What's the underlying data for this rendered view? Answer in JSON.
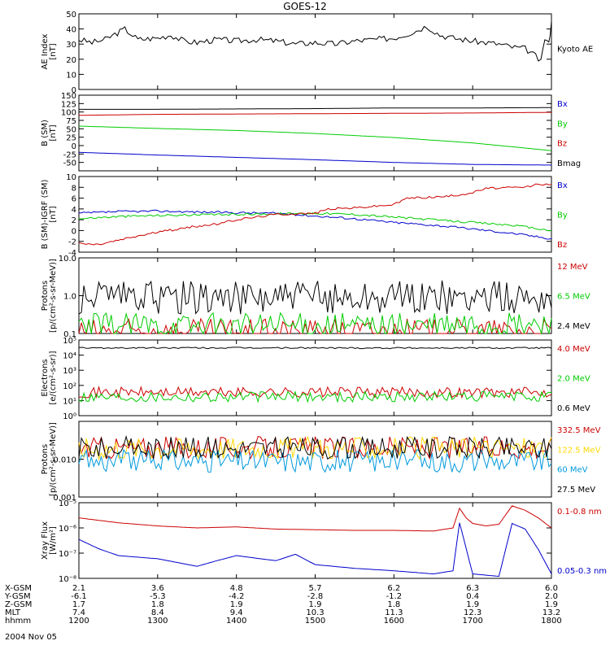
{
  "title": "GOES-12",
  "date_label": "2004 Nov 05",
  "ephemeris": {
    "rows": [
      {
        "label": "X-GSM",
        "values": [
          "2.1",
          "3.6",
          "4.8",
          "5.7",
          "6.2",
          "6.3",
          "6.0"
        ]
      },
      {
        "label": "Y-GSM",
        "values": [
          "-6.1",
          "-5.3",
          "-4.2",
          "-2.8",
          "-1.2",
          "0.4",
          "2.0"
        ]
      },
      {
        "label": "Z-GSM",
        "values": [
          "1.7",
          "1.8",
          "1.9",
          "1.9",
          "1.8",
          "1.9",
          "1.9"
        ]
      },
      {
        "label": "MLT",
        "values": [
          "7.4",
          "8.4",
          "9.4",
          "10.3",
          "11.3",
          "12.3",
          "13.2"
        ]
      },
      {
        "label": "hhmm",
        "values": [
          "1200",
          "1300",
          "1400",
          "1500",
          "1600",
          "1700",
          "1800"
        ]
      }
    ]
  },
  "colors": {
    "black": "#000000",
    "red": "#cc0000",
    "green": "#00cc00",
    "blue": "#0000cc",
    "yellow": "#ffd700",
    "cyan": "#0099dd"
  },
  "chart_data": [
    {
      "id": "ae",
      "type": "line",
      "ylabel": "AE Index\n[nT]",
      "ylim": [
        0,
        50
      ],
      "yticks": [
        "0",
        "10",
        "20",
        "30",
        "40",
        "50"
      ],
      "x": [
        1200,
        1800
      ],
      "series": [
        {
          "name": "Kyoto AE",
          "color": "#000000",
          "values": [
            [
              1200,
              33
            ],
            [
              1210,
              31
            ],
            [
              1220,
              33
            ],
            [
              1235,
              40
            ],
            [
              1245,
              33
            ],
            [
              1300,
              34
            ],
            [
              1310,
              36
            ],
            [
              1320,
              32
            ],
            [
              1330,
              31
            ],
            [
              1345,
              33
            ],
            [
              1400,
              32
            ],
            [
              1415,
              33
            ],
            [
              1430,
              32
            ],
            [
              1445,
              30
            ],
            [
              1500,
              31
            ],
            [
              1515,
              30
            ],
            [
              1530,
              32
            ],
            [
              1545,
              33
            ],
            [
              1600,
              34
            ],
            [
              1615,
              38
            ],
            [
              1625,
              42
            ],
            [
              1635,
              36
            ],
            [
              1645,
              34
            ],
            [
              1700,
              32
            ],
            [
              1710,
              31
            ],
            [
              1720,
              30
            ],
            [
              1730,
              28
            ],
            [
              1740,
              27
            ],
            [
              1748,
              22
            ],
            [
              1752,
              18
            ],
            [
              1755,
              34
            ],
            [
              1758,
              30
            ],
            [
              1800,
              45
            ]
          ]
        }
      ]
    },
    {
      "id": "bsm",
      "type": "line",
      "ylabel": "B (SM)\n[nT]",
      "ylim": [
        -75,
        150
      ],
      "yticks": [
        "-50",
        "-25",
        "0",
        "25",
        "50",
        "75",
        "100",
        "125",
        "150"
      ],
      "ytick_values": [
        -50,
        -25,
        0,
        25,
        50,
        75,
        100,
        125,
        150
      ],
      "series": [
        {
          "name": "Bx",
          "color": "#0000cc",
          "values": [
            [
              1200,
              -20
            ],
            [
              1300,
              -28
            ],
            [
              1400,
              -35
            ],
            [
              1500,
              -42
            ],
            [
              1600,
              -50
            ],
            [
              1700,
              -56
            ],
            [
              1800,
              -58
            ]
          ]
        },
        {
          "name": "By",
          "color": "#00cc00",
          "values": [
            [
              1200,
              58
            ],
            [
              1300,
              51
            ],
            [
              1400,
              45
            ],
            [
              1500,
              36
            ],
            [
              1600,
              24
            ],
            [
              1700,
              8
            ],
            [
              1800,
              -15
            ]
          ]
        },
        {
          "name": "Bz",
          "color": "#cc0000",
          "values": [
            [
              1200,
              90
            ],
            [
              1300,
              93
            ],
            [
              1400,
              94
            ],
            [
              1500,
              95
            ],
            [
              1600,
              96
            ],
            [
              1700,
              97
            ],
            [
              1800,
              99
            ]
          ]
        },
        {
          "name": "Bmag",
          "color": "#000000",
          "values": [
            [
              1200,
              108
            ],
            [
              1300,
              108
            ],
            [
              1400,
              109
            ],
            [
              1500,
              110
            ],
            [
              1600,
              112
            ],
            [
              1700,
              112
            ],
            [
              1800,
              113
            ]
          ]
        }
      ]
    },
    {
      "id": "bdiff",
      "type": "line",
      "ylabel": "B (SM)-IGRF (SM)\n[nT]",
      "ylim": [
        -4,
        10
      ],
      "yticks": [
        "-4",
        "-2",
        "0",
        "2",
        "4",
        "6",
        "8",
        "10"
      ],
      "ytick_values": [
        -4,
        -2,
        0,
        2,
        4,
        6,
        8,
        10
      ],
      "series": [
        {
          "name": "Bx",
          "color": "#0000cc",
          "values": [
            [
              1200,
              3.2
            ],
            [
              1230,
              3.5
            ],
            [
              1300,
              3.6
            ],
            [
              1400,
              3.3
            ],
            [
              1430,
              3.2
            ],
            [
              1500,
              2.7
            ],
            [
              1530,
              2.2
            ],
            [
              1600,
              1.5
            ],
            [
              1630,
              1.0
            ],
            [
              1700,
              0.3
            ],
            [
              1730,
              -0.5
            ],
            [
              1800,
              -1.5
            ]
          ]
        },
        {
          "name": "By",
          "color": "#00cc00",
          "values": [
            [
              1200,
              2.2
            ],
            [
              1230,
              2.6
            ],
            [
              1300,
              2.8
            ],
            [
              1400,
              3.0
            ],
            [
              1500,
              3.2
            ],
            [
              1530,
              3.0
            ],
            [
              1600,
              2.5
            ],
            [
              1630,
              2.0
            ],
            [
              1700,
              1.5
            ],
            [
              1730,
              1.0
            ],
            [
              1800,
              0.0
            ]
          ]
        },
        {
          "name": "Bz",
          "color": "#cc0000",
          "values": [
            [
              1200,
              -2.4
            ],
            [
              1215,
              -2.6
            ],
            [
              1230,
              -1.8
            ],
            [
              1245,
              -1.0
            ],
            [
              1300,
              -0.3
            ],
            [
              1330,
              0.8
            ],
            [
              1345,
              1.2
            ],
            [
              1400,
              2.0
            ],
            [
              1430,
              3.0
            ],
            [
              1500,
              3.2
            ],
            [
              1510,
              4.0
            ],
            [
              1530,
              4.2
            ],
            [
              1600,
              4.8
            ],
            [
              1610,
              6.0
            ],
            [
              1640,
              6.3
            ],
            [
              1700,
              7.0
            ],
            [
              1710,
              7.8
            ],
            [
              1740,
              8.0
            ],
            [
              1750,
              8.6
            ],
            [
              1800,
              8.5
            ]
          ]
        }
      ]
    },
    {
      "id": "protons_lo",
      "type": "line",
      "ylabel": "Protons\n[p/(cm²-s-sr-MeV)]",
      "ylim": [
        0.1,
        10.0
      ],
      "ylog": true,
      "yticks": [
        "0.1",
        "1.0",
        "10.0"
      ],
      "ytick_values": [
        0.1,
        1.0,
        10.0
      ],
      "series": [
        {
          "name": "12 MeV",
          "color": "#cc0000",
          "level": 0.11
        },
        {
          "name": "6.5 MeV",
          "color": "#00cc00",
          "level": 0.16
        },
        {
          "name": "2.4 MeV",
          "color": "#000000",
          "level": 0.9
        }
      ]
    },
    {
      "id": "electrons",
      "type": "line",
      "ylabel": "Electrons\n[e/(cm²-s-sr)]",
      "ylim": [
        1,
        100000
      ],
      "ylog": true,
      "yticks": [
        "10⁰",
        "10¹",
        "10²",
        "10³",
        "10⁴",
        "10⁵"
      ],
      "ytick_values": [
        1,
        10,
        100,
        1000,
        10000,
        100000
      ],
      "series": [
        {
          "name": "4.0 MeV",
          "color": "#cc0000",
          "level": 35
        },
        {
          "name": "2.0 MeV",
          "color": "#00cc00",
          "level": 18
        },
        {
          "name": "0.6 MeV",
          "color": "#000000",
          "level": 30000
        }
      ]
    },
    {
      "id": "protons_hi",
      "type": "line",
      "ylabel": "Protons\n[p/(cm²-s-sr-MeV)]",
      "ylim": [
        0.001,
        0.1
      ],
      "ylog": true,
      "yticks": [
        "0.001",
        "0.010"
      ],
      "ytick_values": [
        0.001,
        0.01
      ],
      "series": [
        {
          "name": "332.5 MeV",
          "color": "#cc0000",
          "level": 0.02
        },
        {
          "name": "122.5 MeV",
          "color": "#ffd700",
          "level": 0.02
        },
        {
          "name": "60 MeV",
          "color": "#0099dd",
          "level": 0.009
        },
        {
          "name": "27.5 MeV",
          "color": "#000000",
          "level": 0.02
        }
      ]
    },
    {
      "id": "xray",
      "type": "line",
      "ylabel": "Xray Flux\n[W/m²]",
      "ylim": [
        1e-08,
        1e-05
      ],
      "ylog": true,
      "yticks": [
        "10⁻⁸",
        "10⁻⁷",
        "10⁻⁶",
        "10⁻⁵"
      ],
      "ytick_values": [
        1e-08,
        1e-07,
        1e-06,
        1e-05
      ],
      "series": [
        {
          "name": "0.1-0.8 nm",
          "color": "#cc0000",
          "values": [
            [
              1200,
              2.5e-06
            ],
            [
              1230,
              1.6e-06
            ],
            [
              1300,
              1.2e-06
            ],
            [
              1330,
              1e-06
            ],
            [
              1400,
              1.1e-06
            ],
            [
              1430,
              9e-07
            ],
            [
              1500,
              8.5e-07
            ],
            [
              1530,
              8e-07
            ],
            [
              1600,
              8e-07
            ],
            [
              1630,
              7.5e-07
            ],
            [
              1645,
              1e-06
            ],
            [
              1650,
              6e-06
            ],
            [
              1655,
              2.5e-06
            ],
            [
              1700,
              1.5e-06
            ],
            [
              1710,
              1.2e-06
            ],
            [
              1720,
              1.4e-06
            ],
            [
              1730,
              7.5e-06
            ],
            [
              1740,
              5e-06
            ],
            [
              1750,
              2.5e-06
            ],
            [
              1800,
              1e-06
            ]
          ]
        },
        {
          "name": "0.05-0.3 nm",
          "color": "#0000cc",
          "values": [
            [
              1200,
              3.5e-07
            ],
            [
              1215,
              1.5e-07
            ],
            [
              1230,
              8e-08
            ],
            [
              1300,
              6e-08
            ],
            [
              1330,
              3e-08
            ],
            [
              1345,
              5e-08
            ],
            [
              1400,
              8e-08
            ],
            [
              1430,
              5e-08
            ],
            [
              1445,
              9e-08
            ],
            [
              1500,
              3.5e-08
            ],
            [
              1530,
              2.5e-08
            ],
            [
              1600,
              2e-08
            ],
            [
              1630,
              1.5e-08
            ],
            [
              1645,
              2e-08
            ],
            [
              1650,
              1.6e-06
            ],
            [
              1700,
              1.5e-08
            ],
            [
              1720,
              1.2e-08
            ],
            [
              1730,
              1.5e-06
            ],
            [
              1740,
              9e-07
            ],
            [
              1750,
              1.4e-07
            ],
            [
              1800,
              1.5e-08
            ]
          ]
        }
      ]
    }
  ],
  "x_axis": {
    "ticks": [
      1200,
      1300,
      1400,
      1500,
      1600,
      1700,
      1800
    ]
  }
}
